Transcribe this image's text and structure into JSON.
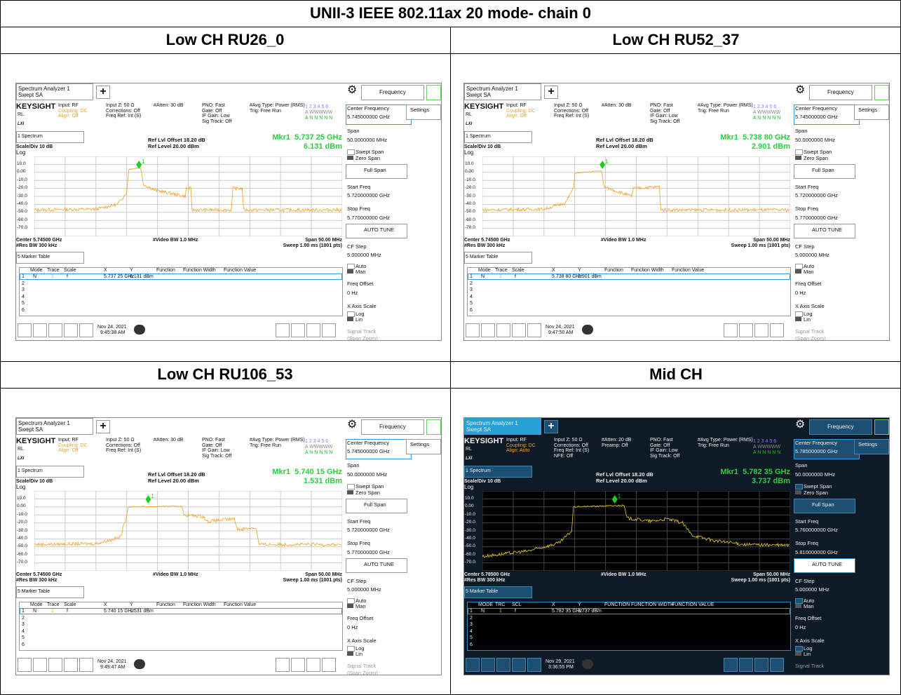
{
  "title": "UNII-3 IEEE 802.11ax 20 mode- chain 0",
  "panels": [
    {
      "heading": "Low CH RU26_0",
      "tab": [
        "Spectrum Analyzer 1",
        "Swept SA"
      ],
      "menu": "Frequency",
      "brand": "KEYSIGHT",
      "rl": "RL",
      "lxi": "LXI",
      "status": [
        [
          "Input: RF",
          "Coupling: DC",
          "Align: Off"
        ],
        [
          "Input Z: 50 Ω",
          "Corrections: Off",
          "Freq Ref: Int (S)"
        ],
        [
          "#Atten: 30 dB"
        ],
        [
          "PNO: Fast",
          "Gate: Off",
          "IF Gain: Low",
          "Sig Track: Off"
        ],
        [
          "#Avg Type: Power (RMS)",
          "Trig: Free Run"
        ]
      ],
      "trace_info": [
        "1 2 3 4 5 6",
        "A WWWWW",
        "A N N N N N"
      ],
      "window": "1 Spectrum",
      "scale": "Scale/Div 10 dB",
      "log": "Log",
      "ref": [
        "Ref Lvl Offset 18.20 dB",
        "Ref Level 20.00 dBm"
      ],
      "marker": [
        "Mkr1  5.737 25 GHz",
        "6.131 dBm"
      ],
      "ylabels": [
        "10.0",
        "0.00",
        "-10.0",
        "-20.0",
        "-30.0",
        "-40.0",
        "-50.0",
        "-60.0",
        "-70.0"
      ],
      "bottom": [
        "Center 5.74500 GHz",
        "#Res BW 300 kHz",
        "#Video BW 1.0 MHz",
        "Span 50.00 MHz",
        "Sweep 1.00 ms (1001 pts)"
      ],
      "table_title": "5 Marker Table",
      "headers": [
        "Mode",
        "Trace",
        "Scale",
        "X",
        "Y",
        "Function",
        "Function Width",
        "Function Value"
      ],
      "rows": [
        [
          "1",
          "N",
          "1",
          "f",
          "5.737 25 GHz",
          "6.131 dBm"
        ],
        [
          "2"
        ],
        [
          "3"
        ],
        [
          "4"
        ],
        [
          "5"
        ],
        [
          "6"
        ]
      ],
      "date": [
        "Nov 24, 2021",
        "9:45:38 AM"
      ],
      "marker_tag": "1",
      "side": [
        "Center Frequency",
        "5.745000000 GHz",
        "Settings",
        "Span",
        "50.0000000 MHz",
        "Swept Span",
        "Zero Span",
        "Full Span",
        "Start Freq",
        "5.720000000 GHz",
        "Stop Freq",
        "5.770000000 GHz",
        "AUTO TUNE",
        "CF Step",
        "5.000000 MHz",
        "Auto",
        "Man",
        "Freq Offset",
        "0 Hz",
        "X Axis Scale",
        "Log",
        "Lin",
        "Signal Track",
        "(Span Zoom)"
      ]
    },
    {
      "heading": "Low CH RU52_37",
      "tab": [
        "Spectrum Analyzer 1",
        "Swept SA"
      ],
      "menu": "Frequency",
      "brand": "KEYSIGHT",
      "rl": "RL",
      "lxi": "LXI",
      "status": [
        [
          "Input: RF",
          "Coupling: DC",
          "Align: Off"
        ],
        [
          "Input Z: 50 Ω",
          "Corrections: Off",
          "Freq Ref: Int (S)"
        ],
        [
          "#Atten: 30 dB"
        ],
        [
          "PNO: Fast",
          "Gate: Off",
          "IF Gain: Low",
          "Sig Track: Off"
        ],
        [
          "#Avg Type: Power (RMS)",
          "Trig: Free Run"
        ]
      ],
      "trace_info": [
        "1 2 3 4 5 6",
        "A WWWWW",
        "A N N N N N"
      ],
      "window": "1 Spectrum",
      "scale": "Scale/Div 10 dB",
      "log": "Log",
      "ref": [
        "Ref Lvl Offset 18.20 dB",
        "Ref Level 20.00 dBm"
      ],
      "marker": [
        "Mkr1  5.738 80 GHz",
        "2.901 dBm"
      ],
      "ylabels": [
        "10.0",
        "0.00",
        "-10.0",
        "-20.0",
        "-30.0",
        "-40.0",
        "-50.0",
        "-60.0",
        "-70.0"
      ],
      "bottom": [
        "Center 5.74500 GHz",
        "#Res BW 300 kHz",
        "#Video BW 1.0 MHz",
        "Span 50.00 MHz",
        "Sweep 1.00 ms (1001 pts)"
      ],
      "table_title": "5 Marker Table",
      "headers": [
        "Mode",
        "Trace",
        "Scale",
        "X",
        "Y",
        "Function",
        "Function Width",
        "Function Value"
      ],
      "rows": [
        [
          "1",
          "N",
          "1",
          "f",
          "5.738 80 GHz",
          "2.901 dBm"
        ],
        [
          "2"
        ],
        [
          "3"
        ],
        [
          "4"
        ],
        [
          "5"
        ],
        [
          "6"
        ]
      ],
      "date": [
        "Nov 24, 2021",
        "9:47:50 AM"
      ],
      "marker_tag": "1",
      "side": [
        "Center Frequency",
        "5.745000000 GHz",
        "Settings",
        "Span",
        "50.0000000 MHz",
        "Swept Span",
        "Zero Span",
        "Full Span",
        "Start Freq",
        "5.720000000 GHz",
        "Stop Freq",
        "5.770000000 GHz",
        "AUTO TUNE",
        "CF Step",
        "5.000000 MHz",
        "Auto",
        "Man",
        "Freq Offset",
        "0 Hz",
        "X Axis Scale",
        "Log",
        "Lin",
        "Signal Track",
        "(Span Zoom)"
      ]
    },
    {
      "heading": "Low CH RU106_53",
      "tab": [
        "Spectrum Analyzer 1",
        "Swept SA"
      ],
      "menu": "Frequency",
      "brand": "KEYSIGHT",
      "rl": "RL",
      "lxi": "LXI",
      "status": [
        [
          "Input: RF",
          "Coupling: DC",
          "Align: Off"
        ],
        [
          "Input Z: 50 Ω",
          "Corrections: Off",
          "Freq Ref: Int (S)"
        ],
        [
          "#Atten: 30 dB"
        ],
        [
          "PNO: Fast",
          "Gate: Off",
          "IF Gain: Low",
          "Sig Track: Off"
        ],
        [
          "#Avg Type: Power (RMS)",
          "Trig: Free Run"
        ]
      ],
      "trace_info": [
        "1 2 3 4 5 6",
        "A WWWWW",
        "A N N N N N"
      ],
      "window": "1 Spectrum",
      "scale": "Scale/Div 10 dB",
      "log": "Log",
      "ref": [
        "Ref Lvl Offset 18.20 dB",
        "Ref Level 20.00 dBm"
      ],
      "marker": [
        "Mkr1  5.740 15 GHz",
        "1.531 dBm"
      ],
      "ylabels": [
        "10.0",
        "0.00",
        "-10.0",
        "-20.0",
        "-30.0",
        "-40.0",
        "-50.0",
        "-60.0",
        "-70.0"
      ],
      "bottom": [
        "Center 5.74500 GHz",
        "#Res BW 300 kHz",
        "#Video BW 1.0 MHz",
        "Span 50.00 MHz",
        "Sweep 1.00 ms (1001 pts)"
      ],
      "table_title": "5 Marker Table",
      "headers": [
        "Mode",
        "Trace",
        "Scale",
        "X",
        "Y",
        "Function",
        "Function Width",
        "Function Value"
      ],
      "rows": [
        [
          "1",
          "N",
          "1",
          "f",
          "5.740 15 GHz",
          "1.531 dBm"
        ],
        [
          "2"
        ],
        [
          "3"
        ],
        [
          "4"
        ],
        [
          "5"
        ],
        [
          "6"
        ]
      ],
      "date": [
        "Nov 24, 2021",
        "9:49:47 AM"
      ],
      "marker_tag": "1",
      "side": [
        "Center Frequency",
        "5.745000000 GHz",
        "Settings",
        "Span",
        "50.0000000 MHz",
        "Swept Span",
        "Zero Span",
        "Full Span",
        "Start Freq",
        "5.720000000 GHz",
        "Stop Freq",
        "5.770000000 GHz",
        "AUTO TUNE",
        "CF Step",
        "5.000000 MHz",
        "Auto",
        "Man",
        "Freq Offset",
        "0 Hz",
        "X Axis Scale",
        "Log",
        "Lin",
        "Signal Track",
        "(Span Zoom)"
      ]
    },
    {
      "heading": "Mid CH",
      "dark": true,
      "tab": [
        "Spectrum Analyzer 1",
        "Swept SA"
      ],
      "menu": "Frequency",
      "brand": "KEYSIGHT",
      "rl": "RL",
      "lxi": "LXI",
      "status": [
        [
          "Input: RF",
          "Coupling: DC",
          "Align: Auto"
        ],
        [
          "Input Z: 50 Ω",
          "Corrections: Off",
          "Freq Ref: Int (S)",
          "NFE: Off"
        ],
        [
          "#Atten: 20 dB",
          "Preamp: Off"
        ],
        [
          "PNO: Fast",
          "Gate: Off",
          "IF Gain: Low",
          "Sig Track: Off"
        ],
        [
          "#Avg Type: Power (RMS)",
          "Trig: Free Run"
        ]
      ],
      "trace_info": [
        "1 2 3 4 5 6",
        "A WWWWW",
        "A N N N N N"
      ],
      "window": "1 Spectrum",
      "scale": "Scale/Div 10 dB",
      "log": "Log",
      "ref": [
        "Ref Lvl Offset 18.20 dB",
        "Ref Level 20.00 dBm"
      ],
      "marker": [
        "Mkr1  5.782 35 GHz",
        "3.737 dBm"
      ],
      "ylabels": [
        "10.0",
        "0.00",
        "-10.0",
        "-20.0",
        "-30.0",
        "-40.0",
        "-50.0",
        "-60.0",
        "-70.0"
      ],
      "bottom": [
        "Center 5.78500 GHz",
        "#Res BW 300 kHz",
        "#Video BW 1.0 MHz",
        "Span 50.00 MHz",
        "Sweep 1.00 ms (1001 pts)"
      ],
      "table_title": "5 Marker Table",
      "headers": [
        "MODE",
        "TRC",
        "SCL",
        "X",
        "Y",
        "FUNCTION",
        "FUNCTION WIDTH",
        "FUNCTION VALUE"
      ],
      "rows": [
        [
          "1",
          "N",
          "1",
          "f",
          "5.782 35 GHz",
          "3.737 dBm"
        ],
        [
          "2"
        ],
        [
          "3"
        ],
        [
          "4"
        ],
        [
          "5"
        ],
        [
          "6"
        ]
      ],
      "date": [
        "Nov 29, 2021",
        "3:36:55 PM"
      ],
      "marker_tag": "1",
      "side": [
        "Center Frequency",
        "5.785000000 GHz",
        "Settings",
        "Span",
        "50.0000000 MHz",
        "Swept Span",
        "Zero Span",
        "Full Span",
        "Start Freq",
        "5.760000000 GHz",
        "Stop Freq",
        "5.810000000 GHz",
        "AUTO TUNE",
        "CF Step",
        "5.000000 MHz",
        "Auto",
        "Man",
        "Freq Offset",
        "0 Hz",
        "X Axis Scale",
        "Log",
        "Lin",
        "Signal Track"
      ]
    }
  ]
}
